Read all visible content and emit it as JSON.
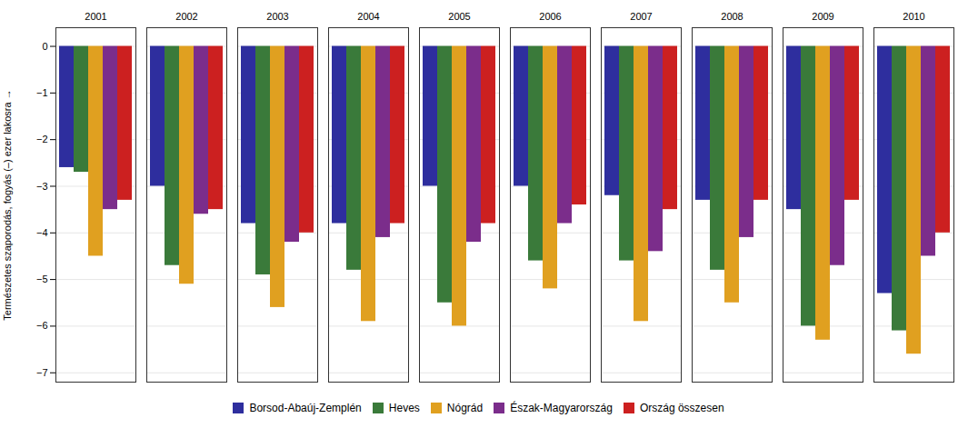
{
  "chart_data": {
    "type": "bar",
    "categories": [
      "2001",
      "2002",
      "2003",
      "2004",
      "2005",
      "2006",
      "2007",
      "2008",
      "2009",
      "2010"
    ],
    "series": [
      {
        "name": "Borsod-Abaúj-Zemplén",
        "color": "#2e2e9e",
        "values": [
          -2.6,
          -3.0,
          -3.8,
          -3.8,
          -3.0,
          -3.0,
          -3.2,
          -3.3,
          -3.5,
          -5.3
        ]
      },
      {
        "name": "Heves",
        "color": "#3a7a3a",
        "values": [
          -2.7,
          -4.7,
          -4.9,
          -4.8,
          -5.5,
          -4.6,
          -4.6,
          -4.8,
          -6.0,
          -6.1
        ]
      },
      {
        "name": "Nógrád",
        "color": "#e0a020",
        "values": [
          -4.5,
          -5.1,
          -5.6,
          -5.9,
          -6.0,
          -5.2,
          -5.9,
          -5.5,
          -6.3,
          -6.6
        ]
      },
      {
        "name": "Észak-Magyarország",
        "color": "#7b2d8b",
        "values": [
          -3.5,
          -3.6,
          -4.2,
          -4.1,
          -4.2,
          -3.8,
          -4.4,
          -4.1,
          -4.7,
          -4.5
        ]
      },
      {
        "name": "Ország összesen",
        "color": "#cc2020",
        "values": [
          -3.3,
          -3.5,
          -4.0,
          -3.8,
          -3.8,
          -3.4,
          -3.5,
          -3.3,
          -3.3,
          -4.0
        ]
      }
    ],
    "ylabel": "Természetes szaporodás, fogyás (–) ezer lakosra",
    "ylim": [
      -7.2,
      0.4
    ],
    "yticks": [
      0,
      -1,
      -2,
      -3,
      -4,
      -5,
      -6,
      -7
    ],
    "grid": true,
    "legend": "bottom"
  }
}
